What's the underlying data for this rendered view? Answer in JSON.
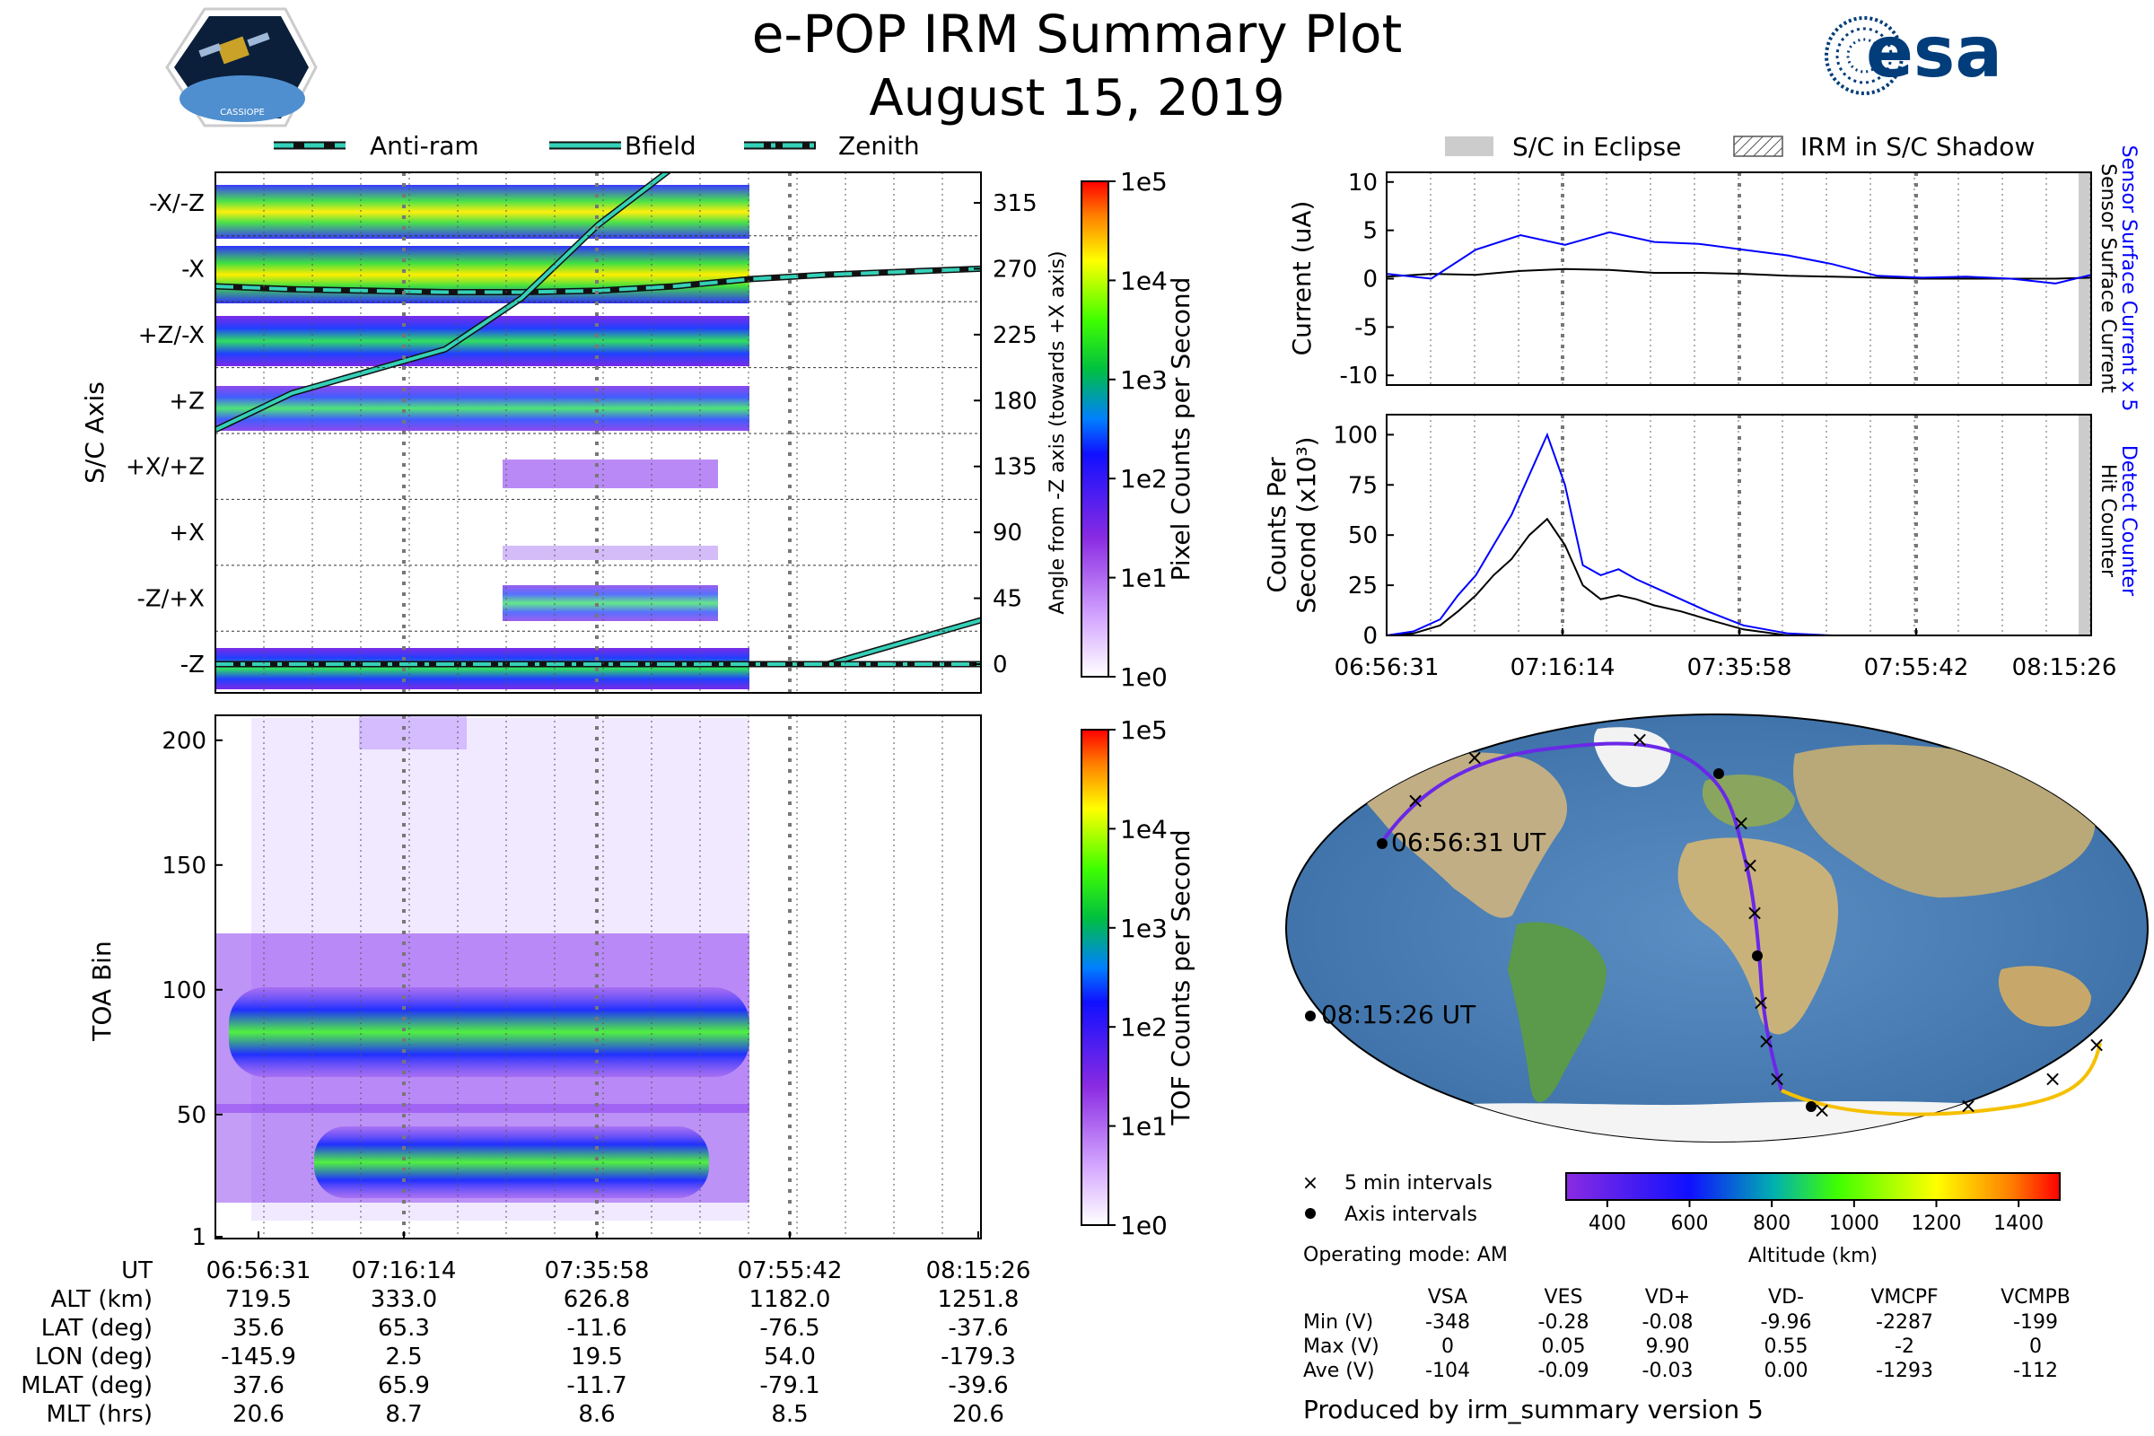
{
  "header": {
    "title": "e-POP IRM Summary Plot",
    "date": "August 15, 2019",
    "cassiope_logo_text": "CASSIOPE",
    "esa_logo_text": "esa"
  },
  "colors": {
    "accent_cyan": "#34d1b8",
    "blue_line": "#0000ff",
    "eclipse_gray": "#cccccc"
  },
  "legend_top_left": [
    {
      "label": "Anti-ram",
      "style": "dashed"
    },
    {
      "label": "Bfield",
      "style": "solid"
    },
    {
      "label": "Zenith",
      "style": "dashdot"
    }
  ],
  "legend_top_right": [
    {
      "label": "S/C in Eclipse"
    },
    {
      "label": "IRM in S/C Shadow"
    }
  ],
  "chart_data": [
    {
      "type": "heatmap",
      "name": "pixel-counts",
      "ylabel": "S/C Axis",
      "y_right_label": "Angle from -Z axis (towards +X axis)",
      "axis_labels": [
        "-X/-Z",
        "-X",
        "+Z/-X",
        "+Z",
        "+X/+Z",
        "+X",
        "-Z/+X",
        "-Z"
      ],
      "angle_ticks": [
        "315",
        "270",
        "225",
        "180",
        "135",
        "90",
        "45",
        "0"
      ],
      "angle_values": [
        315,
        270,
        225,
        180,
        135,
        90,
        45,
        0
      ],
      "colorbar_label": "Pixel Counts per Second",
      "colorbar_ticks": [
        "1e5",
        "1e4",
        "1e3",
        "1e2",
        "1e1",
        "1e0"
      ],
      "series": [
        {
          "name": "Anti-ram",
          "style": "dashed",
          "angle_deg": [
            258,
            256,
            255,
            254,
            254,
            255,
            258,
            263,
            266,
            268,
            270
          ]
        },
        {
          "name": "Bfield",
          "style": "solid",
          "angle_deg": [
            160,
            185,
            200,
            215,
            250,
            300,
            340,
            null,
            0,
            15,
            30
          ]
        },
        {
          "name": "Zenith",
          "style": "dashdot",
          "angle_deg": [
            0,
            0,
            0,
            0,
            0,
            0,
            0,
            0,
            0,
            0,
            0
          ]
        }
      ]
    },
    {
      "type": "heatmap",
      "name": "tof-counts",
      "ylabel": "TOA Bin",
      "yticks": [
        "200",
        "150",
        "100",
        "50",
        "1"
      ],
      "ytick_values": [
        200,
        150,
        100,
        50,
        1
      ],
      "ylim": [
        1,
        210
      ],
      "colorbar_label": "TOF Counts per Second",
      "colorbar_ticks": [
        "1e5",
        "1e4",
        "1e3",
        "1e2",
        "1e1",
        "1e0"
      ]
    },
    {
      "type": "line",
      "name": "current",
      "ylabel": "Current (uA)",
      "yticks": [
        "10",
        "5",
        "0",
        "-5",
        "-10"
      ],
      "ytick_values": [
        10,
        5,
        0,
        -5,
        -10
      ],
      "ylim": [
        -11,
        11
      ],
      "right_label_black": "Sensor Surface Current",
      "right_label_blue": "Sensor Surface Current x 5",
      "x_minutes": [
        0,
        5,
        10,
        15,
        20,
        25,
        30,
        35,
        40,
        45,
        50,
        55,
        60,
        65,
        70,
        75,
        79
      ],
      "series": [
        {
          "name": "Sensor Surface Current",
          "color": "#000000",
          "values": [
            0.2,
            0.5,
            0.4,
            0.8,
            1.0,
            0.9,
            0.6,
            0.6,
            0.5,
            0.3,
            0.2,
            0.1,
            0.0,
            0.0,
            0.0,
            0.0,
            0.1
          ]
        },
        {
          "name": "Sensor Surface Current x 5",
          "color": "#0000ff",
          "values": [
            0.5,
            0.0,
            3.0,
            4.5,
            3.5,
            4.8,
            3.8,
            3.6,
            3.0,
            2.4,
            1.5,
            0.3,
            0.1,
            0.2,
            0.0,
            -0.5,
            0.4
          ]
        }
      ]
    },
    {
      "type": "line",
      "name": "counts",
      "ylabel_line1": "Counts Per",
      "ylabel_line2": "Second (x10³)",
      "yticks": [
        "100",
        "75",
        "50",
        "25",
        "0"
      ],
      "ytick_values": [
        100,
        75,
        50,
        25,
        0
      ],
      "ylim": [
        0,
        110
      ],
      "right_label_black": "Hit Counter",
      "right_label_blue": "Detect Counter",
      "x_minutes": [
        0,
        3,
        6,
        8,
        10,
        12,
        14,
        16,
        18,
        20,
        22,
        24,
        26,
        28,
        30,
        33,
        36,
        40,
        45,
        50,
        60,
        70,
        79
      ],
      "series": [
        {
          "name": "Hit Counter",
          "color": "#000000",
          "values": [
            0,
            1,
            5,
            12,
            20,
            30,
            38,
            50,
            58,
            45,
            25,
            18,
            20,
            18,
            15,
            12,
            8,
            3,
            0,
            0,
            0,
            0,
            0
          ]
        },
        {
          "name": "Detect Counter",
          "color": "#0000ff",
          "values": [
            0,
            2,
            8,
            20,
            30,
            45,
            60,
            80,
            100,
            75,
            35,
            30,
            33,
            28,
            24,
            18,
            12,
            5,
            1,
            0,
            0,
            0,
            0
          ]
        }
      ]
    }
  ],
  "time_axis": {
    "labels": [
      "06:56:31",
      "07:16:14",
      "07:35:58",
      "07:55:42",
      "08:15:26"
    ]
  },
  "orbit_table": {
    "rows": [
      {
        "label": "UT",
        "values": [
          "06:56:31",
          "07:16:14",
          "07:35:58",
          "07:55:42",
          "08:15:26"
        ]
      },
      {
        "label": "ALT (km)",
        "values": [
          "719.5",
          "333.0",
          "626.8",
          "1182.0",
          "1251.8"
        ]
      },
      {
        "label": "LAT (deg)",
        "values": [
          "35.6",
          "65.3",
          "-11.6",
          "-76.5",
          "-37.6"
        ]
      },
      {
        "label": "LON (deg)",
        "values": [
          "-145.9",
          "2.5",
          "19.5",
          "54.0",
          "-179.3"
        ]
      },
      {
        "label": "MLAT (deg)",
        "values": [
          "37.6",
          "65.9",
          "-11.7",
          "-79.1",
          "-39.6"
        ]
      },
      {
        "label": "MLT (hrs)",
        "values": [
          "20.6",
          "8.7",
          "8.6",
          "8.5",
          "20.6"
        ]
      }
    ]
  },
  "map": {
    "start_label": "06:56:31 UT",
    "end_label": "08:15:26 UT",
    "legend": {
      "five_min": "5 min intervals",
      "axis": "Axis intervals"
    },
    "altitude_bar": {
      "label": "Altitude (km)",
      "ticks": [
        "400",
        "600",
        "800",
        "1000",
        "1200",
        "1400"
      ],
      "tick_values": [
        400,
        600,
        800,
        1000,
        1200,
        1400
      ],
      "range": [
        300,
        1500
      ]
    }
  },
  "voltages": {
    "mode": "Operating mode: AM",
    "columns": [
      "VSA",
      "VES",
      "VD+",
      "VD-",
      "VMCPF",
      "VCMPB"
    ],
    "rows": [
      {
        "label": "Min (V)",
        "values": [
          "-348",
          "-0.28",
          "-0.08",
          "-9.96",
          "-2287",
          "-199"
        ]
      },
      {
        "label": "Max (V)",
        "values": [
          "0",
          "0.05",
          "9.90",
          "0.55",
          "-2",
          "0"
        ]
      },
      {
        "label": "Ave (V)",
        "values": [
          "-104",
          "-0.09",
          "-0.03",
          "0.00",
          "-1293",
          "-112"
        ]
      }
    ]
  },
  "footer": "Produced by irm_summary version 5"
}
